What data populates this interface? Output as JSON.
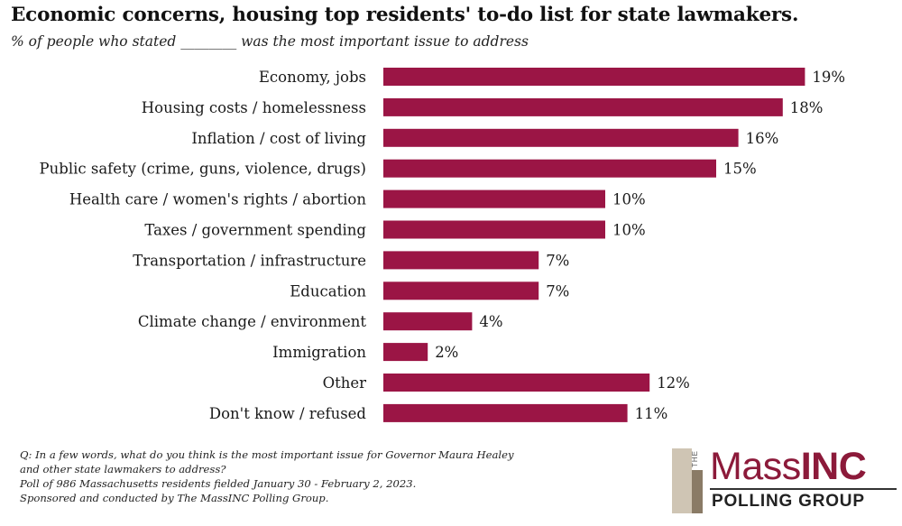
{
  "header": {
    "title": "Economic concerns, housing top residents' to-do list for state lawmakers.",
    "subtitle": "% of people who stated ________ was the most important issue to address"
  },
  "chart_data": {
    "type": "bar",
    "orientation": "horizontal",
    "categories": [
      "Economy, jobs",
      "Housing costs / homelessness",
      "Inflation / cost of living",
      "Public safety (crime, guns, violence, drugs)",
      "Health care / women's rights / abortion",
      "Taxes / government spending",
      "Transportation / infrastructure",
      "Education",
      "Climate change / environment",
      "Immigration",
      "Other",
      "Don't know / refused"
    ],
    "values": [
      19,
      18,
      16,
      15,
      10,
      10,
      7,
      7,
      4,
      2,
      12,
      11
    ],
    "value_labels": [
      "19%",
      "18%",
      "16%",
      "15%",
      "10%",
      "10%",
      "7%",
      "7%",
      "4%",
      "2%",
      "12%",
      "11%"
    ],
    "bar_color": "#9b1545",
    "xlim": [
      0,
      20
    ],
    "grid": false,
    "legend": "none"
  },
  "footnote": {
    "lines": [
      "Q: In a few words, what do you think is the most important issue for Governor Maura Healey",
      "and other state lawmakers to address?",
      "Poll of 986 Massachusetts residents fielded January 30 - February 2, 2023.",
      "Sponsored and conducted by The MassINC Polling Group."
    ]
  },
  "logo": {
    "the": "THE",
    "mass": "Mass",
    "inc": "INC",
    "sub": "POLLING GROUP",
    "brand_color": "#8c1a3a"
  }
}
